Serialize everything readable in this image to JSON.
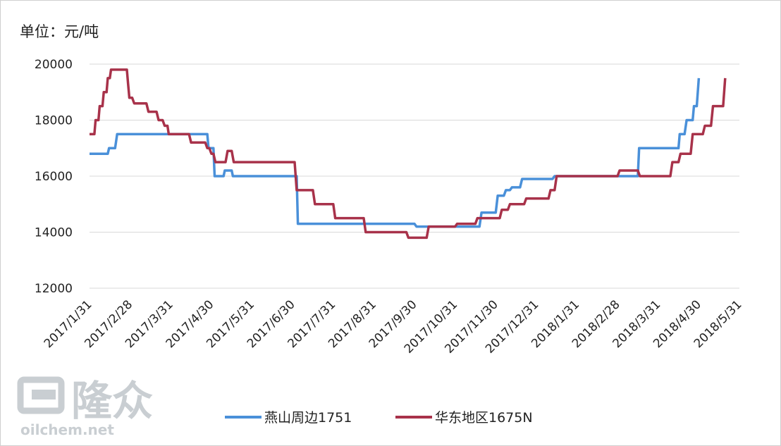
{
  "unit_label": "单位：元/吨",
  "watermark": {
    "logo": "隆众",
    "site": "oilchem.net"
  },
  "chart_data": {
    "type": "line",
    "title": "",
    "xlabel": "",
    "ylabel": "",
    "ylim": [
      12000,
      20000
    ],
    "yticks": [
      12000,
      14000,
      16000,
      18000,
      20000
    ],
    "grid": "horizontal",
    "legend_position": "bottom",
    "categories": [
      "2017/1/31",
      "2017/2/28",
      "2017/3/31",
      "2017/4/30",
      "2017/5/31",
      "2017/6/30",
      "2017/7/31",
      "2017/8/31",
      "2017/9/30",
      "2017/10/31",
      "2017/11/30",
      "2017/12/31",
      "2018/1/31",
      "2018/2/28",
      "2018/3/31",
      "2018/4/30",
      "2018/5/31"
    ],
    "series": [
      {
        "name": "燕山周边1751",
        "color": "#4a90d9",
        "points": [
          [
            0.0,
            16800
          ],
          [
            0.45,
            16800
          ],
          [
            0.48,
            17000
          ],
          [
            0.63,
            17000
          ],
          [
            0.68,
            17500
          ],
          [
            2.5,
            17500
          ],
          [
            2.9,
            17500
          ],
          [
            2.93,
            17000
          ],
          [
            3.05,
            17000
          ],
          [
            3.08,
            16000
          ],
          [
            3.3,
            16000
          ],
          [
            3.33,
            16200
          ],
          [
            3.5,
            16200
          ],
          [
            3.53,
            16000
          ],
          [
            5.0,
            16000
          ],
          [
            5.1,
            16000
          ],
          [
            5.13,
            14300
          ],
          [
            7.0,
            14300
          ],
          [
            8.0,
            14300
          ],
          [
            8.05,
            14200
          ],
          [
            9.0,
            14200
          ],
          [
            9.6,
            14200
          ],
          [
            9.65,
            14700
          ],
          [
            10.0,
            14700
          ],
          [
            10.05,
            15300
          ],
          [
            10.2,
            15300
          ],
          [
            10.25,
            15500
          ],
          [
            10.35,
            15500
          ],
          [
            10.4,
            15600
          ],
          [
            10.6,
            15600
          ],
          [
            10.65,
            15900
          ],
          [
            11.4,
            15900
          ],
          [
            11.45,
            16000
          ],
          [
            13.0,
            16000
          ],
          [
            13.5,
            16000
          ],
          [
            13.53,
            17000
          ],
          [
            14.0,
            17000
          ],
          [
            14.5,
            17000
          ],
          [
            14.53,
            17500
          ],
          [
            14.65,
            17500
          ],
          [
            14.7,
            18000
          ],
          [
            14.85,
            18000
          ],
          [
            14.88,
            18500
          ],
          [
            14.95,
            18500
          ],
          [
            15.0,
            19500
          ]
        ]
      },
      {
        "name": "华东地区1675N",
        "color": "#a8324a",
        "points": [
          [
            0.0,
            17500
          ],
          [
            0.12,
            17500
          ],
          [
            0.15,
            18000
          ],
          [
            0.22,
            18000
          ],
          [
            0.25,
            18500
          ],
          [
            0.32,
            18500
          ],
          [
            0.35,
            19000
          ],
          [
            0.42,
            19000
          ],
          [
            0.45,
            19500
          ],
          [
            0.5,
            19500
          ],
          [
            0.53,
            19800
          ],
          [
            0.92,
            19800
          ],
          [
            0.95,
            19300
          ],
          [
            0.98,
            18800
          ],
          [
            1.05,
            18800
          ],
          [
            1.1,
            18600
          ],
          [
            1.4,
            18600
          ],
          [
            1.45,
            18300
          ],
          [
            1.65,
            18300
          ],
          [
            1.7,
            18000
          ],
          [
            1.8,
            18000
          ],
          [
            1.85,
            17800
          ],
          [
            1.92,
            17800
          ],
          [
            1.95,
            17500
          ],
          [
            2.45,
            17500
          ],
          [
            2.5,
            17200
          ],
          [
            2.85,
            17200
          ],
          [
            2.9,
            17000
          ],
          [
            2.95,
            17000
          ],
          [
            3.0,
            16800
          ],
          [
            3.05,
            16800
          ],
          [
            3.1,
            16500
          ],
          [
            3.35,
            16500
          ],
          [
            3.4,
            16900
          ],
          [
            3.5,
            16900
          ],
          [
            3.55,
            16500
          ],
          [
            5.0,
            16500
          ],
          [
            5.05,
            16500
          ],
          [
            5.1,
            15500
          ],
          [
            5.5,
            15500
          ],
          [
            5.55,
            15000
          ],
          [
            6.0,
            15000
          ],
          [
            6.05,
            14500
          ],
          [
            6.75,
            14500
          ],
          [
            6.8,
            14000
          ],
          [
            7.8,
            14000
          ],
          [
            7.85,
            13800
          ],
          [
            8.3,
            13800
          ],
          [
            8.35,
            14200
          ],
          [
            9.0,
            14200
          ],
          [
            9.05,
            14300
          ],
          [
            9.5,
            14300
          ],
          [
            9.55,
            14500
          ],
          [
            10.1,
            14500
          ],
          [
            10.15,
            14800
          ],
          [
            10.3,
            14800
          ],
          [
            10.35,
            15000
          ],
          [
            10.7,
            15000
          ],
          [
            10.75,
            15200
          ],
          [
            11.3,
            15200
          ],
          [
            11.35,
            15500
          ],
          [
            11.45,
            15500
          ],
          [
            11.5,
            16000
          ],
          [
            13.0,
            16000
          ],
          [
            13.05,
            16200
          ],
          [
            13.5,
            16200
          ],
          [
            13.55,
            16000
          ],
          [
            14.3,
            16000
          ],
          [
            14.35,
            16500
          ],
          [
            14.5,
            16500
          ],
          [
            14.55,
            16800
          ],
          [
            14.8,
            16800
          ],
          [
            14.85,
            17500
          ],
          [
            15.1,
            17500
          ],
          [
            15.15,
            17800
          ],
          [
            15.3,
            17800
          ],
          [
            15.35,
            18500
          ],
          [
            15.6,
            18500
          ],
          [
            15.65,
            19500
          ]
        ]
      }
    ]
  }
}
